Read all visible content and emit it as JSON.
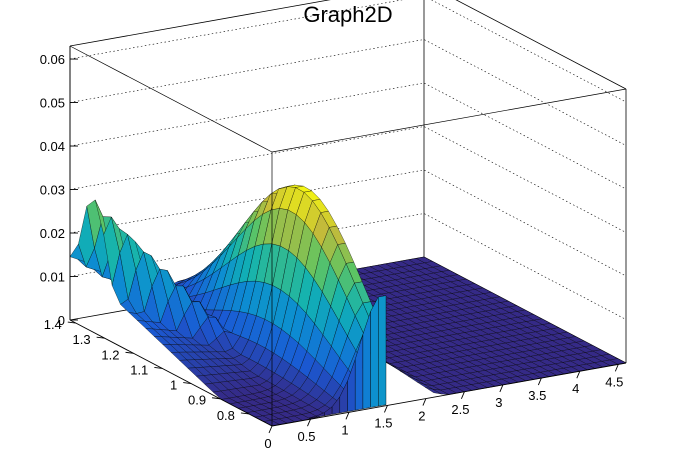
{
  "chart_data": {
    "type": "surface",
    "title": "Graph2D",
    "x_ticks": [
      "0",
      "0.5",
      "1",
      "1.5",
      "2",
      "2.5",
      "3",
      "3.5",
      "4",
      "4.5"
    ],
    "y_ticks": [
      "0.8",
      "0.9",
      "1",
      "1.1",
      "1.2",
      "1.3",
      "1.4"
    ],
    "z_ticks": [
      "0",
      "0.01",
      "0.02",
      "0.03",
      "0.04",
      "0.05",
      "0.06"
    ],
    "x_range": [
      0,
      4.6
    ],
    "y_range": [
      0.72,
      1.42
    ],
    "z_range": [
      0,
      0.063
    ],
    "grid": true,
    "colormap": [
      "#352a87",
      "#1a5ad4",
      "#0d8cd2",
      "#12b2b2",
      "#5ec462",
      "#c3bb3a",
      "#f9fb0e"
    ],
    "background_color": "#ffffff",
    "peak": {
      "x": 1.45,
      "y": 1.0,
      "z": 0.041
    },
    "ridge": {
      "x0": 0.0,
      "y0": 1.34,
      "z0": 0.031
    },
    "edge_level": 0.014,
    "gap_x": [
      1.5,
      2.15
    ],
    "gap_y_max": 1.05
  }
}
